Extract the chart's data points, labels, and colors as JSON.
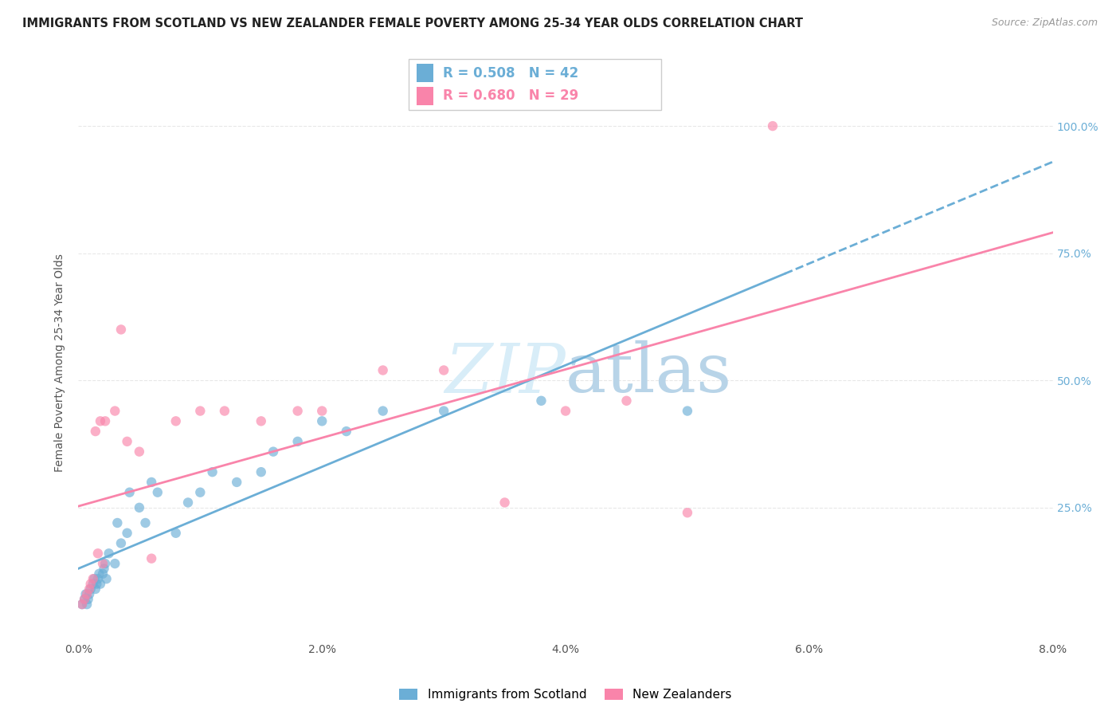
{
  "title": "IMMIGRANTS FROM SCOTLAND VS NEW ZEALANDER FEMALE POVERTY AMONG 25-34 YEAR OLDS CORRELATION CHART",
  "source": "Source: ZipAtlas.com",
  "ylabel": "Female Poverty Among 25-34 Year Olds",
  "xlim": [
    0.0,
    0.08
  ],
  "ylim": [
    -0.01,
    1.08
  ],
  "xticks": [
    0.0,
    0.02,
    0.04,
    0.06,
    0.08
  ],
  "xtick_labels": [
    "0.0%",
    "2.0%",
    "4.0%",
    "6.0%",
    "8.0%"
  ],
  "yticks": [
    0.0,
    0.25,
    0.5,
    0.75,
    1.0
  ],
  "ytick_labels": [
    "",
    "25.0%",
    "50.0%",
    "75.0%",
    "100.0%"
  ],
  "scotland_color": "#6baed6",
  "nz_color": "#f984aa",
  "scotland_R": 0.508,
  "scotland_N": 42,
  "nz_R": 0.68,
  "nz_N": 29,
  "legend_labels": [
    "Immigrants from Scotland",
    "New Zealanders"
  ],
  "scotland_x": [
    0.0003,
    0.0005,
    0.0006,
    0.0007,
    0.0008,
    0.0009,
    0.001,
    0.0012,
    0.0013,
    0.0014,
    0.0015,
    0.0016,
    0.0017,
    0.0018,
    0.002,
    0.0021,
    0.0022,
    0.0023,
    0.0025,
    0.003,
    0.0032,
    0.0035,
    0.004,
    0.0042,
    0.005,
    0.0055,
    0.006,
    0.0065,
    0.008,
    0.009,
    0.01,
    0.011,
    0.013,
    0.015,
    0.016,
    0.018,
    0.02,
    0.022,
    0.025,
    0.03,
    0.038,
    0.05
  ],
  "scotland_y": [
    0.06,
    0.07,
    0.08,
    0.06,
    0.07,
    0.08,
    0.09,
    0.1,
    0.11,
    0.09,
    0.1,
    0.11,
    0.12,
    0.1,
    0.12,
    0.13,
    0.14,
    0.11,
    0.16,
    0.14,
    0.22,
    0.18,
    0.2,
    0.28,
    0.25,
    0.22,
    0.3,
    0.28,
    0.2,
    0.26,
    0.28,
    0.32,
    0.3,
    0.32,
    0.36,
    0.38,
    0.42,
    0.4,
    0.44,
    0.44,
    0.46,
    0.44
  ],
  "nz_x": [
    0.0003,
    0.0005,
    0.0007,
    0.0009,
    0.001,
    0.0012,
    0.0014,
    0.0016,
    0.0018,
    0.002,
    0.0022,
    0.003,
    0.0035,
    0.004,
    0.005,
    0.006,
    0.008,
    0.01,
    0.012,
    0.015,
    0.018,
    0.02,
    0.025,
    0.03,
    0.035,
    0.04,
    0.045,
    0.05,
    0.057
  ],
  "nz_y": [
    0.06,
    0.07,
    0.08,
    0.09,
    0.1,
    0.11,
    0.4,
    0.16,
    0.42,
    0.14,
    0.42,
    0.44,
    0.6,
    0.38,
    0.36,
    0.15,
    0.42,
    0.44,
    0.44,
    0.42,
    0.44,
    0.44,
    0.52,
    0.52,
    0.26,
    0.44,
    0.46,
    0.24,
    1.0
  ],
  "background_color": "#ffffff",
  "grid_color": "#e8e8e8",
  "watermark_color": "#d8edf8"
}
